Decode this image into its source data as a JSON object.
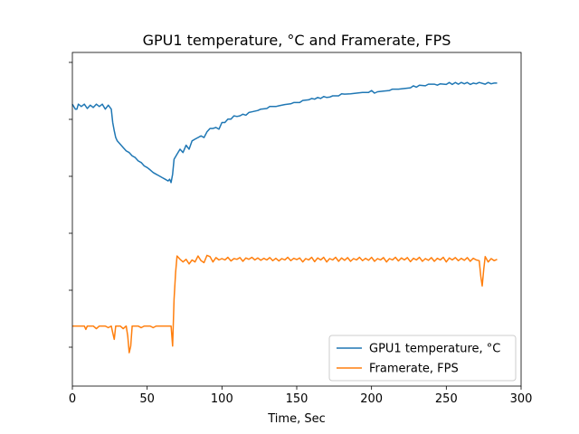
{
  "chart_data": {
    "type": "line",
    "title": "GPU1 temperature, °C and Framerate, FPS",
    "xlabel": "Time, Sec",
    "ylabel": "",
    "xlim": [
      0,
      300
    ],
    "x_ticks": [
      0,
      50,
      100,
      150,
      200,
      250,
      300
    ],
    "y_ticks_labeled": false,
    "y_tick_count": 6,
    "grid": false,
    "legend_position": "lower-right",
    "colors": {
      "temperature": "#1f77b4",
      "framerate": "#ff7f0e"
    },
    "series": [
      {
        "name": "GPU1 temperature, °C",
        "color": "#1f77b4",
        "points": [
          [
            0,
            0.845
          ],
          [
            2,
            0.83
          ],
          [
            3,
            0.83
          ],
          [
            4,
            0.845
          ],
          [
            6,
            0.838
          ],
          [
            8,
            0.845
          ],
          [
            10,
            0.832
          ],
          [
            12,
            0.842
          ],
          [
            14,
            0.835
          ],
          [
            16,
            0.845
          ],
          [
            18,
            0.838
          ],
          [
            20,
            0.845
          ],
          [
            22,
            0.83
          ],
          [
            24,
            0.842
          ],
          [
            26,
            0.83
          ],
          [
            27,
            0.79
          ],
          [
            28,
            0.765
          ],
          [
            29,
            0.745
          ],
          [
            30,
            0.735
          ],
          [
            32,
            0.725
          ],
          [
            34,
            0.715
          ],
          [
            36,
            0.705
          ],
          [
            38,
            0.7
          ],
          [
            40,
            0.69
          ],
          [
            42,
            0.685
          ],
          [
            44,
            0.675
          ],
          [
            46,
            0.67
          ],
          [
            48,
            0.66
          ],
          [
            50,
            0.655
          ],
          [
            52,
            0.648
          ],
          [
            54,
            0.64
          ],
          [
            56,
            0.635
          ],
          [
            58,
            0.63
          ],
          [
            60,
            0.625
          ],
          [
            62,
            0.62
          ],
          [
            64,
            0.615
          ],
          [
            65,
            0.62
          ],
          [
            66,
            0.61
          ],
          [
            67,
            0.635
          ],
          [
            68,
            0.68
          ],
          [
            70,
            0.695
          ],
          [
            72,
            0.71
          ],
          [
            74,
            0.7
          ],
          [
            76,
            0.722
          ],
          [
            78,
            0.71
          ],
          [
            80,
            0.735
          ],
          [
            82,
            0.74
          ],
          [
            84,
            0.745
          ],
          [
            86,
            0.75
          ],
          [
            88,
            0.745
          ],
          [
            90,
            0.762
          ],
          [
            92,
            0.772
          ],
          [
            94,
            0.772
          ],
          [
            96,
            0.775
          ],
          [
            98,
            0.77
          ],
          [
            100,
            0.79
          ],
          [
            102,
            0.79
          ],
          [
            104,
            0.8
          ],
          [
            106,
            0.8
          ],
          [
            108,
            0.81
          ],
          [
            110,
            0.808
          ],
          [
            112,
            0.81
          ],
          [
            114,
            0.815
          ],
          [
            116,
            0.812
          ],
          [
            118,
            0.82
          ],
          [
            120,
            0.822
          ],
          [
            124,
            0.826
          ],
          [
            126,
            0.83
          ],
          [
            130,
            0.832
          ],
          [
            132,
            0.838
          ],
          [
            136,
            0.838
          ],
          [
            138,
            0.84
          ],
          [
            142,
            0.844
          ],
          [
            146,
            0.846
          ],
          [
            148,
            0.85
          ],
          [
            152,
            0.85
          ],
          [
            154,
            0.856
          ],
          [
            158,
            0.858
          ],
          [
            160,
            0.862
          ],
          [
            162,
            0.86
          ],
          [
            164,
            0.865
          ],
          [
            166,
            0.862
          ],
          [
            168,
            0.868
          ],
          [
            170,
            0.865
          ],
          [
            172,
            0.866
          ],
          [
            174,
            0.87
          ],
          [
            178,
            0.87
          ],
          [
            180,
            0.876
          ],
          [
            182,
            0.875
          ],
          [
            186,
            0.876
          ],
          [
            190,
            0.878
          ],
          [
            194,
            0.88
          ],
          [
            198,
            0.88
          ],
          [
            200,
            0.886
          ],
          [
            202,
            0.878
          ],
          [
            204,
            0.882
          ],
          [
            208,
            0.884
          ],
          [
            212,
            0.886
          ],
          [
            214,
            0.89
          ],
          [
            218,
            0.89
          ],
          [
            222,
            0.892
          ],
          [
            226,
            0.894
          ],
          [
            228,
            0.9
          ],
          [
            230,
            0.896
          ],
          [
            232,
            0.902
          ],
          [
            236,
            0.9
          ],
          [
            238,
            0.905
          ],
          [
            242,
            0.905
          ],
          [
            244,
            0.902
          ],
          [
            246,
            0.906
          ],
          [
            250,
            0.904
          ],
          [
            252,
            0.91
          ],
          [
            254,
            0.904
          ],
          [
            256,
            0.91
          ],
          [
            258,
            0.905
          ],
          [
            260,
            0.91
          ],
          [
            262,
            0.906
          ],
          [
            264,
            0.91
          ],
          [
            266,
            0.904
          ],
          [
            268,
            0.908
          ],
          [
            270,
            0.906
          ],
          [
            272,
            0.91
          ],
          [
            276,
            0.905
          ],
          [
            278,
            0.91
          ],
          [
            280,
            0.906
          ],
          [
            282,
            0.908
          ],
          [
            284,
            0.908
          ]
        ]
      },
      {
        "name": "Framerate, FPS",
        "color": "#ff7f0e",
        "points": [
          [
            0,
            0.18
          ],
          [
            4,
            0.18
          ],
          [
            8,
            0.18
          ],
          [
            9,
            0.17
          ],
          [
            10,
            0.18
          ],
          [
            14,
            0.18
          ],
          [
            16,
            0.172
          ],
          [
            18,
            0.18
          ],
          [
            22,
            0.18
          ],
          [
            24,
            0.175
          ],
          [
            26,
            0.18
          ],
          [
            27,
            0.16
          ],
          [
            28,
            0.14
          ],
          [
            29,
            0.18
          ],
          [
            32,
            0.18
          ],
          [
            34,
            0.172
          ],
          [
            36,
            0.18
          ],
          [
            37,
            0.15
          ],
          [
            38,
            0.1
          ],
          [
            39,
            0.12
          ],
          [
            40,
            0.18
          ],
          [
            44,
            0.18
          ],
          [
            46,
            0.175
          ],
          [
            48,
            0.18
          ],
          [
            52,
            0.18
          ],
          [
            54,
            0.175
          ],
          [
            56,
            0.18
          ],
          [
            60,
            0.18
          ],
          [
            64,
            0.18
          ],
          [
            66,
            0.18
          ],
          [
            67,
            0.12
          ],
          [
            68,
            0.26
          ],
          [
            69,
            0.34
          ],
          [
            70,
            0.39
          ],
          [
            72,
            0.38
          ],
          [
            74,
            0.372
          ],
          [
            76,
            0.38
          ],
          [
            78,
            0.366
          ],
          [
            80,
            0.378
          ],
          [
            82,
            0.372
          ],
          [
            84,
            0.39
          ],
          [
            86,
            0.376
          ],
          [
            88,
            0.37
          ],
          [
            90,
            0.392
          ],
          [
            92,
            0.388
          ],
          [
            94,
            0.372
          ],
          [
            96,
            0.385
          ],
          [
            98,
            0.378
          ],
          [
            100,
            0.382
          ],
          [
            102,
            0.378
          ],
          [
            104,
            0.386
          ],
          [
            106,
            0.375
          ],
          [
            108,
            0.382
          ],
          [
            110,
            0.38
          ],
          [
            112,
            0.385
          ],
          [
            114,
            0.374
          ],
          [
            116,
            0.384
          ],
          [
            118,
            0.38
          ],
          [
            120,
            0.386
          ],
          [
            122,
            0.378
          ],
          [
            124,
            0.384
          ],
          [
            126,
            0.377
          ],
          [
            128,
            0.383
          ],
          [
            130,
            0.378
          ],
          [
            132,
            0.385
          ],
          [
            134,
            0.376
          ],
          [
            136,
            0.383
          ],
          [
            138,
            0.375
          ],
          [
            140,
            0.382
          ],
          [
            142,
            0.378
          ],
          [
            144,
            0.386
          ],
          [
            146,
            0.376
          ],
          [
            148,
            0.383
          ],
          [
            150,
            0.379
          ],
          [
            152,
            0.384
          ],
          [
            154,
            0.372
          ],
          [
            156,
            0.382
          ],
          [
            158,
            0.378
          ],
          [
            160,
            0.386
          ],
          [
            162,
            0.373
          ],
          [
            164,
            0.384
          ],
          [
            166,
            0.378
          ],
          [
            168,
            0.386
          ],
          [
            170,
            0.372
          ],
          [
            172,
            0.382
          ],
          [
            174,
            0.378
          ],
          [
            176,
            0.386
          ],
          [
            178,
            0.374
          ],
          [
            180,
            0.384
          ],
          [
            182,
            0.377
          ],
          [
            184,
            0.385
          ],
          [
            186,
            0.374
          ],
          [
            188,
            0.382
          ],
          [
            190,
            0.378
          ],
          [
            192,
            0.386
          ],
          [
            194,
            0.376
          ],
          [
            196,
            0.383
          ],
          [
            198,
            0.377
          ],
          [
            200,
            0.386
          ],
          [
            202,
            0.374
          ],
          [
            204,
            0.382
          ],
          [
            206,
            0.378
          ],
          [
            208,
            0.385
          ],
          [
            210,
            0.372
          ],
          [
            212,
            0.382
          ],
          [
            214,
            0.378
          ],
          [
            216,
            0.386
          ],
          [
            218,
            0.375
          ],
          [
            220,
            0.384
          ],
          [
            222,
            0.378
          ],
          [
            224,
            0.385
          ],
          [
            226,
            0.373
          ],
          [
            228,
            0.383
          ],
          [
            230,
            0.378
          ],
          [
            232,
            0.386
          ],
          [
            234,
            0.374
          ],
          [
            236,
            0.382
          ],
          [
            238,
            0.377
          ],
          [
            240,
            0.385
          ],
          [
            242,
            0.374
          ],
          [
            244,
            0.383
          ],
          [
            246,
            0.378
          ],
          [
            248,
            0.386
          ],
          [
            250,
            0.372
          ],
          [
            252,
            0.384
          ],
          [
            254,
            0.378
          ],
          [
            256,
            0.385
          ],
          [
            258,
            0.376
          ],
          [
            260,
            0.383
          ],
          [
            262,
            0.377
          ],
          [
            264,
            0.385
          ],
          [
            266,
            0.374
          ],
          [
            268,
            0.383
          ],
          [
            270,
            0.378
          ],
          [
            272,
            0.376
          ],
          [
            273,
            0.33
          ],
          [
            274,
            0.3
          ],
          [
            275,
            0.35
          ],
          [
            276,
            0.388
          ],
          [
            278,
            0.372
          ],
          [
            280,
            0.382
          ],
          [
            282,
            0.376
          ],
          [
            284,
            0.38
          ]
        ]
      }
    ]
  }
}
